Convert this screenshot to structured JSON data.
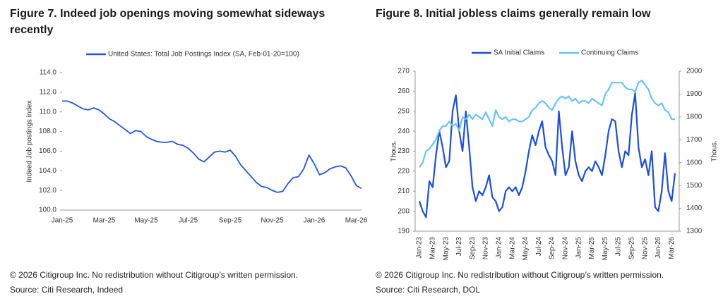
{
  "chart_data": [
    {
      "type": "line",
      "title": "Figure 7. Indeed job openings moving somewhat sideways recently",
      "ylabel": "Indeed Job postings index",
      "legend": "top",
      "footnote": "© 2026 Citigroup Inc. No redistribution without Citigroup’s written permission.",
      "source": "Source: Citi Research, Indeed",
      "categories": [
        "Jan-25",
        null,
        null,
        null,
        null,
        null,
        null,
        null,
        "Mar-25",
        null,
        null,
        null,
        null,
        null,
        null,
        null,
        "May-25",
        null,
        null,
        null,
        null,
        null,
        null,
        null,
        "Jul-25",
        null,
        null,
        null,
        null,
        null,
        null,
        null,
        "Sep-25",
        null,
        null,
        null,
        null,
        null,
        null,
        null,
        "Nov-25",
        null,
        null,
        null,
        null,
        null,
        null,
        null,
        "Jan-26",
        null,
        null,
        null,
        null,
        null,
        null,
        null,
        "Mar-26",
        null
      ],
      "series": [
        {
          "name": "United States: Total Job Postings Index (SA, Feb-01-20=100)",
          "color": "#2656d4",
          "values": [
            111.1,
            111.1,
            110.9,
            110.6,
            110.3,
            110.2,
            110.4,
            110.2,
            109.8,
            109.3,
            109.0,
            108.6,
            108.2,
            107.8,
            108.1,
            108.0,
            107.5,
            107.2,
            107.0,
            106.9,
            106.9,
            107.0,
            106.7,
            106.6,
            106.3,
            105.8,
            105.2,
            104.9,
            105.4,
            105.9,
            106.0,
            105.9,
            106.1,
            105.5,
            104.6,
            104.0,
            103.4,
            102.8,
            102.4,
            102.3,
            102.0,
            101.8,
            101.9,
            102.7,
            103.3,
            103.4,
            104.2,
            105.6,
            104.7,
            103.6,
            103.8,
            104.2,
            104.4,
            104.5,
            104.3,
            103.5,
            102.5,
            102.2
          ]
        }
      ],
      "ylim": [
        100,
        114
      ],
      "yticks": [
        {
          "value": 100,
          "label": "100.0"
        },
        {
          "value": 102,
          "label": "102.0"
        },
        {
          "value": 104,
          "label": "104.0"
        },
        {
          "value": 106,
          "label": "106.0"
        },
        {
          "value": 108,
          "label": "108.0"
        },
        {
          "value": 110,
          "label": "110.0"
        },
        {
          "value": 112,
          "label": "112.0"
        },
        {
          "value": 114,
          "label": "114.0"
        }
      ]
    },
    {
      "type": "line",
      "title": "Figure 8. Initial jobless claims generally remain low",
      "ylabel": "Thous.",
      "y2label": "Thous.",
      "legend": "top",
      "footnote": "© 2026 Citigroup Inc. No redistribution without Citigroup’s written permission.",
      "source": "Source: Citi Research, DOL",
      "categories": [
        "Jan-23",
        null,
        null,
        null,
        "Mar-23",
        null,
        null,
        null,
        "May-23",
        null,
        null,
        null,
        "Jul-23",
        null,
        null,
        null,
        "Sep-23",
        null,
        null,
        null,
        "Nov-23",
        null,
        null,
        null,
        "Jan-24",
        null,
        null,
        null,
        "Mar-24",
        null,
        null,
        null,
        "May-24",
        null,
        null,
        null,
        "Jul-24",
        null,
        null,
        null,
        "Sep-24",
        null,
        null,
        null,
        "Nov-24",
        null,
        null,
        null,
        "Jan-25",
        null,
        null,
        null,
        "Mar-25",
        null,
        null,
        null,
        "May-25",
        null,
        null,
        null,
        "Jul-25",
        null,
        null,
        null,
        "Sep-25",
        null,
        null,
        null,
        "Nov-25",
        null,
        null,
        null,
        "Jan-26",
        null,
        null,
        null,
        "Mar-26",
        null
      ],
      "series": [
        {
          "name": "SA Initial Claims",
          "color": "#1f4fd0",
          "values": [
            205,
            200,
            197,
            215,
            212,
            228,
            240,
            232,
            222,
            225,
            250,
            258,
            240,
            230,
            250,
            232,
            212,
            205,
            210,
            208,
            212,
            218,
            207,
            205,
            200,
            202,
            210,
            212,
            210,
            212,
            208,
            212,
            220,
            230,
            238,
            233,
            240,
            245,
            232,
            228,
            225,
            218,
            250,
            232,
            218,
            222,
            240,
            225,
            218,
            215,
            220,
            222,
            220,
            225,
            222,
            218,
            228,
            240,
            246,
            245,
            230,
            222,
            230,
            228,
            248,
            259,
            232,
            222,
            226,
            218,
            230,
            202,
            200,
            210,
            229,
            210,
            205,
            219
          ]
        },
        {
          "name": "Continuing Claims",
          "color": "#6cc2f0",
          "axis": "y2",
          "values": [
            1580,
            1600,
            1650,
            1660,
            1680,
            1700,
            1740,
            1760,
            1760,
            1780,
            1760,
            1770,
            1740,
            1800,
            1790,
            1810,
            1790,
            1810,
            1800,
            1790,
            1820,
            1790,
            1760,
            1830,
            1800,
            1790,
            1800,
            1780,
            1790,
            1790,
            1780,
            1780,
            1790,
            1800,
            1830,
            1840,
            1860,
            1870,
            1860,
            1840,
            1830,
            1860,
            1880,
            1890,
            1880,
            1890,
            1870,
            1880,
            1860,
            1870,
            1870,
            1860,
            1880,
            1870,
            1860,
            1850,
            1900,
            1920,
            1950,
            1950,
            1950,
            1950,
            1930,
            1920,
            1920,
            1910,
            1950,
            1960,
            1940,
            1920,
            1880,
            1860,
            1850,
            1860,
            1830,
            1820,
            1790,
            1790
          ]
        }
      ],
      "ylim": [
        190,
        270
      ],
      "yticks": [
        190,
        200,
        210,
        220,
        230,
        240,
        250,
        260,
        270
      ],
      "y2lim": [
        1300,
        2000
      ],
      "y2ticks": [
        1300,
        1400,
        1500,
        1600,
        1700,
        1800,
        1900,
        2000
      ]
    }
  ]
}
